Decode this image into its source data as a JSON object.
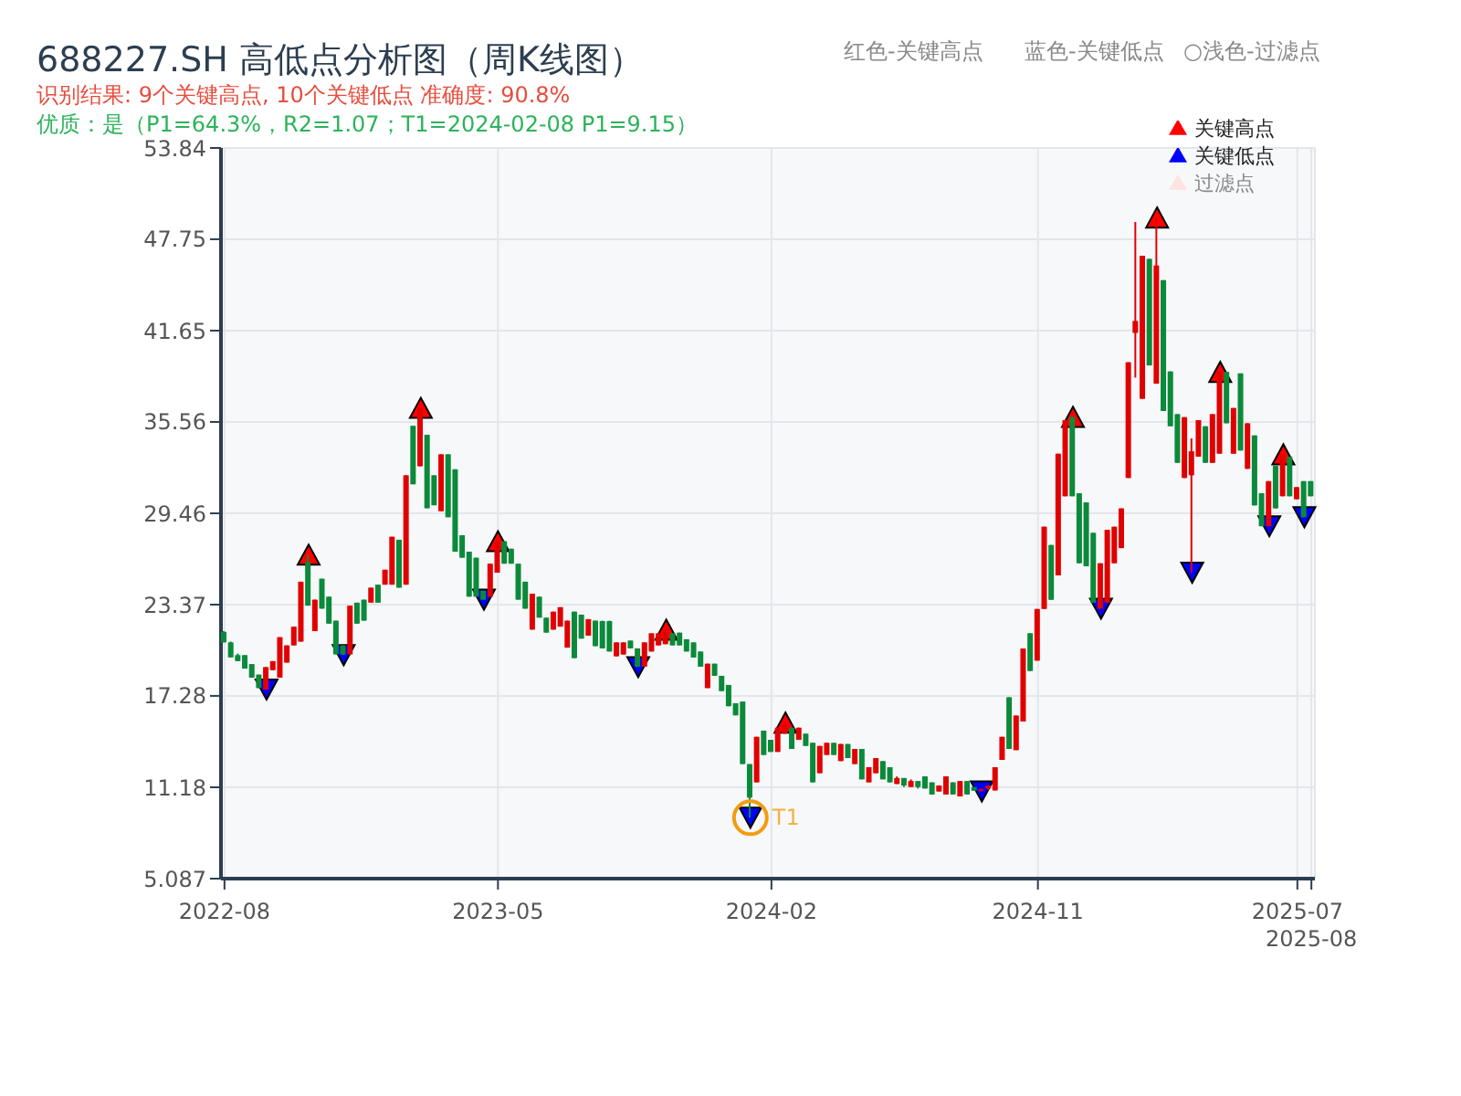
{
  "chart_data": {
    "type": "candlestick",
    "title": "688227.SH 高低点分析图（周K线图）",
    "subtitle": "识别结果: 9个关键高点, 10个关键低点  准确度: 90.8%",
    "annotations": [
      "优质：是（P1=64.3%，R2=1.07；T1=2024-02-08 P1=9.15）",
      "红色-关键高点",
      "蓝色-关键低点",
      "○浅色-过滤点",
      "T1"
    ],
    "categories": [
      "2022-08",
      null,
      null,
      null,
      null,
      null,
      null,
      null,
      null,
      null,
      null,
      null,
      null,
      null,
      null,
      null,
      null,
      null,
      null,
      null,
      null,
      null,
      null,
      null,
      null,
      null,
      null,
      null,
      null,
      null,
      null,
      null,
      null,
      null,
      null,
      null,
      null,
      null,
      null,
      "2023-05",
      null,
      null,
      null,
      null,
      null,
      null,
      null,
      null,
      null,
      null,
      null,
      null,
      null,
      null,
      null,
      null,
      null,
      null,
      null,
      null,
      null,
      null,
      null,
      null,
      null,
      null,
      null,
      null,
      null,
      null,
      null,
      null,
      null,
      null,
      null,
      null,
      null,
      null,
      "2024-02",
      null,
      null,
      null,
      null,
      null,
      null,
      null,
      null,
      null,
      null,
      null,
      null,
      null,
      null,
      null,
      null,
      null,
      null,
      null,
      null,
      null,
      null,
      null,
      null,
      null,
      null,
      null,
      null,
      null,
      null,
      null,
      null,
      null,
      null,
      null,
      null,
      null,
      "2024-11",
      null,
      null,
      null,
      null,
      null,
      null,
      null,
      null,
      null,
      null,
      null,
      null,
      null,
      null,
      null,
      null,
      null,
      null,
      null,
      null,
      null,
      null,
      null,
      null,
      null,
      null,
      null,
      null,
      null,
      null,
      null,
      null,
      null,
      null,
      null,
      null,
      "2025-07",
      null,
      "2025-08"
    ],
    "ohlc": [
      [
        21.55,
        21.6,
        20.85,
        20.85
      ],
      [
        20.85,
        20.9,
        19.85,
        19.85
      ],
      [
        20.0,
        20.1,
        19.6,
        19.6
      ],
      [
        20.0,
        20.0,
        19.1,
        19.1
      ],
      [
        19.4,
        19.4,
        18.5,
        18.5
      ],
      [
        18.7,
        18.7,
        17.8,
        17.8
      ],
      [
        17.7,
        19.2,
        17.7,
        19.2
      ],
      [
        19.0,
        19.6,
        19.0,
        19.6
      ],
      [
        18.5,
        21.2,
        18.5,
        21.2
      ],
      [
        19.5,
        20.65,
        19.5,
        20.65
      ],
      [
        20.65,
        21.9,
        20.65,
        21.9
      ],
      [
        20.9,
        24.9,
        20.9,
        24.9
      ],
      [
        26.2,
        26.7,
        23.3,
        23.3
      ],
      [
        21.6,
        23.7,
        21.6,
        23.7
      ],
      [
        25.1,
        25.1,
        23.1,
        23.1
      ],
      [
        23.9,
        23.9,
        22.1,
        22.1
      ],
      [
        22.3,
        22.3,
        20.05,
        20.05
      ],
      [
        20.65,
        20.65,
        20.0,
        20.05
      ],
      [
        20.05,
        23.3,
        20.05,
        23.3
      ],
      [
        23.5,
        23.5,
        22.1,
        22.1
      ],
      [
        23.7,
        23.7,
        22.3,
        22.3
      ],
      [
        23.5,
        24.5,
        23.5,
        24.5
      ],
      [
        24.7,
        24.7,
        23.5,
        23.5
      ],
      [
        24.7,
        25.7,
        24.7,
        25.7
      ],
      [
        24.7,
        27.9,
        24.7,
        27.9
      ],
      [
        27.7,
        27.7,
        24.5,
        24.5
      ],
      [
        24.7,
        32.0,
        24.7,
        32.0
      ],
      [
        35.3,
        35.3,
        31.4,
        31.4
      ],
      [
        32.6,
        36.5,
        32.6,
        36.5
      ],
      [
        34.7,
        34.7,
        29.8,
        29.8
      ],
      [
        32.0,
        32.0,
        30.0,
        30.0
      ],
      [
        29.6,
        33.4,
        29.6,
        33.4
      ],
      [
        33.4,
        33.4,
        29.2,
        29.2
      ],
      [
        32.4,
        32.4,
        26.9,
        26.9
      ],
      [
        28.0,
        28.0,
        26.5,
        26.5
      ],
      [
        26.9,
        26.9,
        23.9,
        23.9
      ],
      [
        26.5,
        26.5,
        23.9,
        23.9
      ],
      [
        24.3,
        24.3,
        23.7,
        23.7
      ],
      [
        23.9,
        26.1,
        23.9,
        26.1
      ],
      [
        25.5,
        27.6,
        25.5,
        27.5
      ],
      [
        27.6,
        27.6,
        26.1,
        26.1
      ],
      [
        27.1,
        27.1,
        26.1,
        26.1
      ],
      [
        26.1,
        26.1,
        23.7,
        23.7
      ],
      [
        24.9,
        24.9,
        23.1,
        23.1
      ],
      [
        21.7,
        24.1,
        21.7,
        24.1
      ],
      [
        23.9,
        23.9,
        22.5,
        22.5
      ],
      [
        22.5,
        22.5,
        21.5,
        21.5
      ],
      [
        21.7,
        22.9,
        21.7,
        22.9
      ],
      [
        21.9,
        23.2,
        21.9,
        23.2
      ],
      [
        20.5,
        22.3,
        20.5,
        22.3
      ],
      [
        22.9,
        22.9,
        19.8,
        19.8
      ],
      [
        22.7,
        22.7,
        21.1,
        21.1
      ],
      [
        21.3,
        22.4,
        21.3,
        22.4
      ],
      [
        22.3,
        22.3,
        20.6,
        20.6
      ],
      [
        22.27,
        22.3,
        20.45,
        20.45
      ],
      [
        22.27,
        22.3,
        20.24,
        20.24
      ],
      [
        19.92,
        20.85,
        19.92,
        20.85
      ],
      [
        20.04,
        20.85,
        20.04,
        20.85
      ],
      [
        20.97,
        20.97,
        20.45,
        20.45
      ],
      [
        20.45,
        20.45,
        19.2,
        19.23
      ],
      [
        19.23,
        20.85,
        19.23,
        20.85
      ],
      [
        20.24,
        21.46,
        20.24,
        21.46
      ],
      [
        20.65,
        21.46,
        20.65,
        21.46
      ],
      [
        20.73,
        21.7,
        20.73,
        21.54
      ],
      [
        21.46,
        21.46,
        20.65,
        20.65
      ],
      [
        21.5,
        21.5,
        20.65,
        20.65
      ],
      [
        21.06,
        21.06,
        20.24,
        20.24
      ],
      [
        20.85,
        20.85,
        19.84,
        19.84
      ],
      [
        20.24,
        20.24,
        19.23,
        19.23
      ],
      [
        17.8,
        19.43,
        17.8,
        19.43
      ],
      [
        19.43,
        19.43,
        18.62,
        18.62
      ],
      [
        18.62,
        18.62,
        17.6,
        17.6
      ],
      [
        18.01,
        18.01,
        16.59,
        16.59
      ],
      [
        16.79,
        16.79,
        15.98,
        15.98
      ],
      [
        16.9,
        16.9,
        12.73,
        12.73
      ],
      [
        12.73,
        12.73,
        9.15,
        10.49
      ],
      [
        11.51,
        14.55,
        11.51,
        14.55
      ],
      [
        14.96,
        14.96,
        13.34,
        13.34
      ],
      [
        14.35,
        14.35,
        13.54,
        13.54
      ],
      [
        13.54,
        15.16,
        13.54,
        15.16
      ],
      [
        14.76,
        15.5,
        14.76,
        15.37
      ],
      [
        15.16,
        15.16,
        13.74,
        13.74
      ],
      [
        14.35,
        15.16,
        14.35,
        15.16
      ],
      [
        14.76,
        14.76,
        13.94,
        13.94
      ],
      [
        14.15,
        14.15,
        11.51,
        11.51
      ],
      [
        12.12,
        13.94,
        12.12,
        13.94
      ],
      [
        13.34,
        14.15,
        13.34,
        14.15
      ],
      [
        14.15,
        14.15,
        13.34,
        13.34
      ],
      [
        12.93,
        14.07,
        12.93,
        14.07
      ],
      [
        14.07,
        14.07,
        13.13,
        13.13
      ],
      [
        12.73,
        13.74,
        12.73,
        13.74
      ],
      [
        13.74,
        13.74,
        11.71,
        11.71
      ],
      [
        11.51,
        12.52,
        11.51,
        12.52
      ],
      [
        12.12,
        13.13,
        12.12,
        13.13
      ],
      [
        12.93,
        12.93,
        11.71,
        11.71
      ],
      [
        12.52,
        12.52,
        11.51,
        11.51
      ],
      [
        11.4,
        11.9,
        11.4,
        11.8
      ],
      [
        11.8,
        11.8,
        11.2,
        11.3
      ],
      [
        11.2,
        11.7,
        11.2,
        11.6
      ],
      [
        11.6,
        11.6,
        11.1,
        11.2
      ],
      [
        11.91,
        11.91,
        11.1,
        11.1
      ],
      [
        11.51,
        11.51,
        10.7,
        10.7
      ],
      [
        10.9,
        11.3,
        10.9,
        11.3
      ],
      [
        10.7,
        11.91,
        10.7,
        11.91
      ],
      [
        11.51,
        11.51,
        10.7,
        10.7
      ],
      [
        10.57,
        11.6,
        10.57,
        11.6
      ],
      [
        11.6,
        11.6,
        10.7,
        10.7
      ],
      [
        11.2,
        11.2,
        10.95,
        10.95
      ],
      [
        10.95,
        11.1,
        10.9,
        11.05
      ],
      [
        11.1,
        11.3,
        11.0,
        11.3
      ],
      [
        10.97,
        12.52,
        10.97,
        12.52
      ],
      [
        13.01,
        14.55,
        13.01,
        14.55
      ],
      [
        17.19,
        17.19,
        13.74,
        13.74
      ],
      [
        13.66,
        15.97,
        13.66,
        15.97
      ],
      [
        15.57,
        20.44,
        15.57,
        20.44
      ],
      [
        21.46,
        21.46,
        18.94,
        18.94
      ],
      [
        19.63,
        23.08,
        19.63,
        23.08
      ],
      [
        23.08,
        28.57,
        23.08,
        28.57
      ],
      [
        27.35,
        27.35,
        23.69,
        23.69
      ],
      [
        25.32,
        33.44,
        25.32,
        33.44
      ],
      [
        30.6,
        35.68,
        30.6,
        35.68
      ],
      [
        35.9,
        35.9,
        30.6,
        30.6
      ],
      [
        30.8,
        30.8,
        26.13,
        26.13
      ],
      [
        30.19,
        30.19,
        25.93,
        25.93
      ],
      [
        28.16,
        28.16,
        23.49,
        23.49
      ],
      [
        23.1,
        26.13,
        23.1,
        26.13
      ],
      [
        23.49,
        28.36,
        23.49,
        28.36
      ],
      [
        26.13,
        28.57,
        26.13,
        28.57
      ],
      [
        27.14,
        29.79,
        27.14,
        29.79
      ],
      [
        31.82,
        39.54,
        31.82,
        39.54
      ],
      [
        41.5,
        48.9,
        38.52,
        42.3
      ],
      [
        37.1,
        46.65,
        37.1,
        46.65
      ],
      [
        46.44,
        46.44,
        39.33,
        39.33
      ],
      [
        38.11,
        49.2,
        38.11,
        46.0
      ],
      [
        45.02,
        45.02,
        36.29,
        36.29
      ],
      [
        38.93,
        38.93,
        35.27,
        35.27
      ],
      [
        36.08,
        36.08,
        32.83,
        32.83
      ],
      [
        31.82,
        35.88,
        31.82,
        35.88
      ],
      [
        32.0,
        34.46,
        25.5,
        33.6
      ],
      [
        33.24,
        35.68,
        33.24,
        35.68
      ],
      [
        35.27,
        35.27,
        32.83,
        32.83
      ],
      [
        32.83,
        36.08,
        32.83,
        36.08
      ],
      [
        33.44,
        38.9,
        33.44,
        38.9
      ],
      [
        38.9,
        38.9,
        35.47,
        35.47
      ],
      [
        33.44,
        36.49,
        33.44,
        36.49
      ],
      [
        38.8,
        38.8,
        33.65,
        33.65
      ],
      [
        32.43,
        35.47,
        32.43,
        35.47
      ],
      [
        34.66,
        34.66,
        29.99,
        29.99
      ],
      [
        30.8,
        30.8,
        28.6,
        28.6
      ],
      [
        28.6,
        31.61,
        28.6,
        31.61
      ],
      [
        32.63,
        32.63,
        29.79,
        29.79
      ],
      [
        30.6,
        33.4,
        30.6,
        33.4
      ],
      [
        33.24,
        33.24,
        30.6,
        30.6
      ],
      [
        30.4,
        31.21,
        30.4,
        31.21
      ],
      [
        31.61,
        31.61,
        29.2,
        29.2
      ],
      [
        31.61,
        31.61,
        30.6,
        30.6
      ]
    ],
    "series": [
      {
        "name": "关键高点",
        "type": "scatter",
        "color": "#ff0000",
        "marker": "triangle",
        "values": [
          null,
          null,
          null,
          null,
          null,
          null,
          null,
          null,
          null,
          null,
          null,
          null,
          26.7,
          null,
          null,
          null,
          null,
          null,
          null,
          null,
          null,
          null,
          null,
          null,
          null,
          null,
          null,
          null,
          36.5,
          null,
          null,
          null,
          null,
          null,
          null,
          null,
          null,
          null,
          null,
          27.6,
          null,
          null,
          null,
          null,
          null,
          null,
          null,
          null,
          null,
          null,
          null,
          null,
          null,
          null,
          null,
          null,
          null,
          null,
          null,
          null,
          null,
          null,
          null,
          21.7,
          null,
          null,
          null,
          null,
          null,
          null,
          null,
          null,
          null,
          null,
          null,
          null,
          null,
          null,
          null,
          null,
          15.5,
          null,
          null,
          null,
          null,
          null,
          null,
          null,
          null,
          null,
          null,
          null,
          null,
          null,
          null,
          null,
          null,
          null,
          null,
          null,
          null,
          null,
          null,
          null,
          null,
          null,
          null,
          null,
          null,
          null,
          null,
          null,
          null,
          null,
          null,
          null,
          null,
          null,
          null,
          null,
          null,
          35.9,
          null,
          null,
          null,
          null,
          null,
          null,
          null,
          null,
          null,
          null,
          null,
          49.2,
          null,
          null,
          null,
          null,
          null,
          null,
          null,
          null,
          38.9,
          null,
          null,
          null,
          null,
          null,
          null,
          null,
          null,
          33.4,
          null,
          null,
          null,
          null
        ]
      },
      {
        "name": "关键低点",
        "type": "scatter",
        "color": "#0000ff",
        "marker": "triangle",
        "values": [
          null,
          null,
          null,
          null,
          null,
          null,
          17.7,
          null,
          null,
          null,
          null,
          null,
          null,
          null,
          null,
          null,
          null,
          20.0,
          null,
          null,
          null,
          null,
          null,
          null,
          null,
          null,
          null,
          null,
          null,
          null,
          null,
          null,
          null,
          null,
          null,
          null,
          null,
          23.7,
          null,
          null,
          null,
          null,
          null,
          null,
          null,
          null,
          null,
          null,
          null,
          null,
          null,
          null,
          null,
          null,
          null,
          null,
          null,
          null,
          null,
          19.2,
          null,
          null,
          null,
          null,
          null,
          null,
          null,
          null,
          null,
          null,
          null,
          null,
          null,
          null,
          null,
          9.15,
          null,
          null,
          null,
          null,
          null,
          null,
          null,
          null,
          null,
          null,
          null,
          null,
          null,
          null,
          null,
          null,
          null,
          null,
          null,
          null,
          null,
          null,
          null,
          null,
          null,
          null,
          null,
          null,
          null,
          null,
          null,
          null,
          10.9,
          null,
          null,
          null,
          null,
          null,
          null,
          null,
          null,
          null,
          null,
          null,
          null,
          null,
          null,
          null,
          null,
          23.1,
          null,
          null,
          null,
          null,
          null,
          null,
          null,
          null,
          null,
          null,
          null,
          null,
          25.5,
          null,
          null,
          null,
          null,
          null,
          null,
          null,
          null,
          null,
          null,
          28.6,
          null,
          null,
          null,
          null,
          29.2,
          null
        ]
      },
      {
        "name": "过滤点",
        "type": "scatter",
        "color": "#ffe4e1",
        "marker": "triangle",
        "values": [
          null,
          null,
          null,
          null,
          null,
          null,
          null,
          null,
          null,
          null,
          null,
          null,
          null,
          null,
          null,
          null,
          null,
          null,
          null,
          null,
          null,
          null,
          null,
          null,
          null,
          null,
          null,
          null,
          null,
          null,
          null,
          null,
          null,
          null,
          null,
          null,
          null,
          null,
          null,
          null,
          null,
          null,
          null,
          null,
          null,
          null,
          null,
          null,
          null,
          null,
          null,
          null,
          null,
          null,
          null,
          null,
          null,
          null,
          null,
          null,
          null,
          null,
          null,
          null,
          null,
          null,
          null,
          null,
          null,
          null,
          null,
          null,
          null,
          null,
          null,
          null,
          null,
          null,
          null,
          null,
          null,
          null,
          null,
          null,
          null,
          null,
          null,
          null,
          null,
          null,
          null,
          null,
          null,
          null,
          null,
          null,
          null,
          null,
          null,
          null,
          null,
          null,
          null,
          null,
          null,
          null,
          null,
          null,
          null,
          null,
          null,
          null,
          null,
          null,
          null,
          null,
          null,
          null,
          null,
          null,
          null,
          null,
          null,
          null,
          null,
          null,
          null,
          null,
          null,
          null,
          null,
          null,
          null,
          null,
          null,
          null,
          null,
          null,
          null,
          null,
          null,
          null,
          null,
          null,
          null,
          null,
          null,
          null,
          null,
          null,
          null,
          null,
          null,
          null,
          null,
          null
        ]
      }
    ],
    "ylim": [
      5.087,
      53.84
    ],
    "yticks": [
      5.087,
      11.18,
      17.28,
      23.37,
      29.46,
      35.56,
      41.65,
      47.75,
      53.84
    ],
    "grid": true,
    "legend": "top right"
  }
}
